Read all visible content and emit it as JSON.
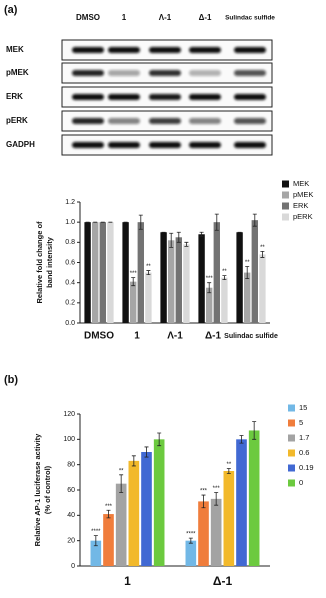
{
  "panels": [
    "(a)",
    "(b)"
  ],
  "blot": {
    "lanes": [
      "DMSO",
      "1",
      "Λ-1",
      "Δ-1",
      "Sulindac sulfide"
    ],
    "rows": [
      "MEK",
      "pMEK",
      "ERK",
      "pERK",
      "GADPH"
    ]
  },
  "chart_data": [
    {
      "type": "bar",
      "ylabel": [
        "Relative fold change of",
        "band intensity"
      ],
      "categories": [
        "DMSO",
        "1",
        "Λ-1",
        "Δ-1",
        "Sulindac sulfide"
      ],
      "ylim": [
        0,
        1.2
      ],
      "yticks": [
        {
          "value": 0,
          "label": "0.0"
        },
        {
          "value": 0.2,
          "label": "0.2"
        },
        {
          "value": 0.4,
          "label": "0.4"
        },
        {
          "value": 0.6,
          "label": "0.6"
        },
        {
          "value": 0.8,
          "label": "0.8"
        },
        {
          "value": 1.0,
          "label": "1.0"
        },
        {
          "value": 1.2,
          "label": "1.2"
        }
      ],
      "series": [
        {
          "name": "MEK",
          "color": "#111111",
          "values": [
            1.0,
            1.0,
            0.9,
            0.88,
            0.9
          ],
          "errors": [
            0,
            0,
            0,
            0.02,
            0
          ],
          "annotations": [
            null,
            null,
            null,
            null,
            null
          ]
        },
        {
          "name": "pMEK",
          "color": "#a6a6a6",
          "values": [
            1.0,
            0.41,
            0.82,
            0.35,
            0.5
          ],
          "errors": [
            0,
            0.04,
            0.07,
            0.05,
            0.06
          ],
          "annotations": [
            null,
            "***",
            null,
            "***",
            "**"
          ]
        },
        {
          "name": "ERK",
          "color": "#737373",
          "values": [
            1.0,
            1.0,
            0.85,
            1.0,
            1.02
          ],
          "errors": [
            0,
            0.07,
            0.05,
            0.08,
            0.06
          ],
          "annotations": [
            null,
            null,
            null,
            null,
            null
          ]
        },
        {
          "name": "pERK",
          "color": "#d9d9d9",
          "values": [
            1.0,
            0.5,
            0.78,
            0.45,
            0.68
          ],
          "errors": [
            0,
            0.02,
            0.02,
            0.02,
            0.03
          ],
          "annotations": [
            null,
            "**",
            null,
            "**",
            "**"
          ]
        }
      ]
    },
    {
      "type": "bar",
      "ylabel": [
        "Relative AP-1 luciferase activity",
        "(% of control)"
      ],
      "categories": [
        "1",
        "Δ-1"
      ],
      "ylim": [
        0,
        120
      ],
      "yticks": [
        0,
        20,
        40,
        60,
        80,
        100,
        120
      ],
      "series": [
        {
          "name": "15",
          "color": "#72b8e6",
          "values": [
            20,
            20
          ],
          "errors": [
            4,
            2
          ],
          "annotations": [
            "****",
            "****"
          ]
        },
        {
          "name": "5",
          "color": "#f07d3c",
          "values": [
            41,
            51
          ],
          "errors": [
            3,
            5
          ],
          "annotations": [
            "***",
            "***"
          ]
        },
        {
          "name": "1.7",
          "color": "#a3a3a3",
          "values": [
            65,
            53
          ],
          "errors": [
            7,
            5
          ],
          "annotations": [
            "**",
            "***"
          ]
        },
        {
          "name": "0.6",
          "color": "#f2b92b",
          "values": [
            83,
            75
          ],
          "errors": [
            4,
            2
          ],
          "annotations": [
            null,
            "**"
          ]
        },
        {
          "name": "0.19",
          "color": "#4169d3",
          "values": [
            90,
            100
          ],
          "errors": [
            4,
            3
          ],
          "annotations": [
            null,
            null
          ]
        },
        {
          "name": "0",
          "color": "#6cca3f",
          "values": [
            100,
            107
          ],
          "errors": [
            5,
            7
          ],
          "annotations": [
            null,
            null
          ]
        }
      ]
    }
  ]
}
